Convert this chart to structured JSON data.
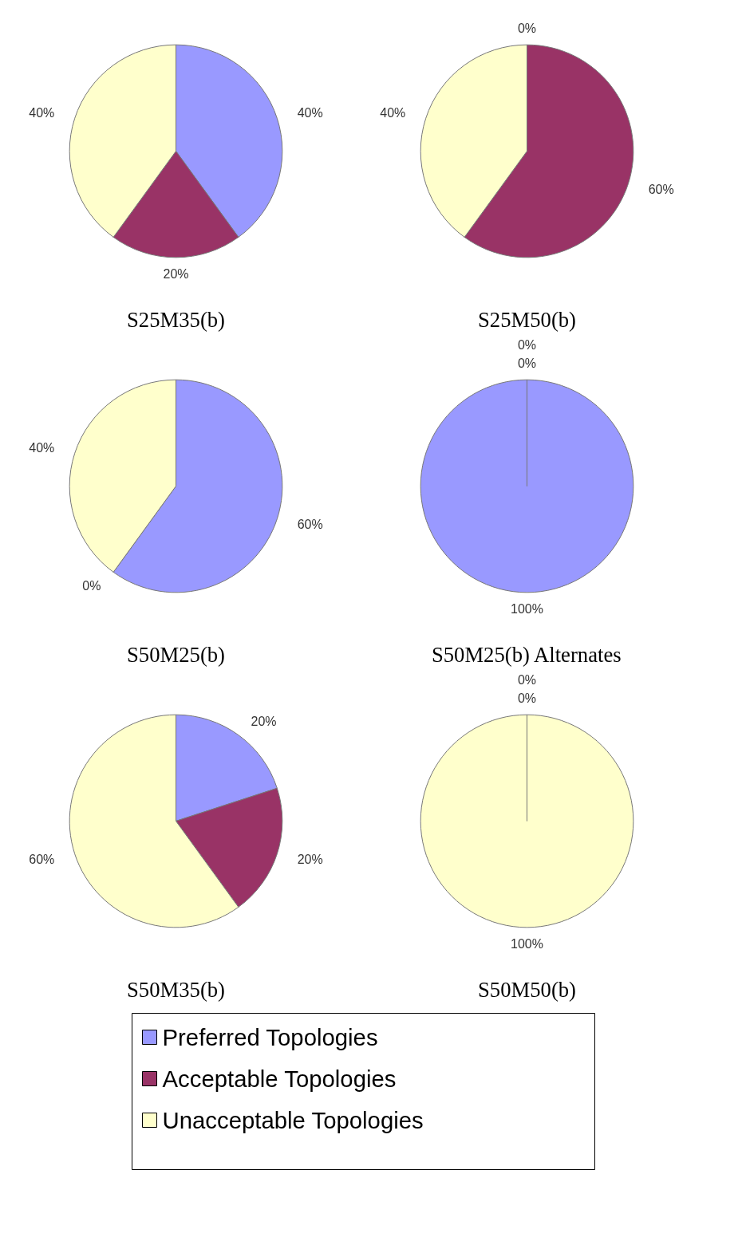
{
  "chart_data": [
    {
      "type": "pie",
      "title": "S25M35(b)",
      "categories": [
        "Preferred Topologies",
        "Acceptable Topologies",
        "Unacceptable Topologies"
      ],
      "values": [
        40,
        20,
        40
      ],
      "value_labels": [
        "40%",
        "20%",
        "40%"
      ],
      "colors": [
        "#9999ff",
        "#993366",
        "#ffffcc"
      ],
      "legend": "bottom"
    },
    {
      "type": "pie",
      "title": "S25M50(b)",
      "categories": [
        null,
        null,
        null
      ],
      "values": [
        0,
        60,
        40
      ],
      "value_labels": [
        "0%",
        "60%",
        "40%"
      ],
      "colors": [
        "#9999ff",
        "#993366",
        "#ffffcc"
      ]
    },
    {
      "type": "pie",
      "title": "S50M25(b)",
      "categories": [
        null,
        null,
        null
      ],
      "values": [
        60,
        0,
        40
      ],
      "value_labels": [
        "60%",
        "0%",
        "40%"
      ],
      "colors": [
        "#9999ff",
        "#993366",
        "#ffffcc"
      ]
    },
    {
      "type": "pie",
      "title": "S50M25(b) Alternates",
      "categories": [
        null,
        null,
        null
      ],
      "values": [
        100,
        0,
        0
      ],
      "value_labels": [
        "100%",
        "0%",
        "0%"
      ],
      "colors": [
        "#9999ff",
        "#993366",
        "#ffffcc"
      ]
    },
    {
      "type": "pie",
      "title": "S50M35(b)",
      "categories": [
        null,
        null,
        null
      ],
      "values": [
        20,
        20,
        60
      ],
      "value_labels": [
        "20%",
        "20%",
        "60%"
      ],
      "colors": [
        "#9999ff",
        "#993366",
        "#ffffcc"
      ]
    },
    {
      "type": "pie",
      "title": "S50M50(b)",
      "categories": [
        null,
        null,
        null
      ],
      "values": [
        0,
        0,
        100
      ],
      "value_labels": [
        "0%",
        "0%",
        "100%"
      ],
      "colors": [
        "#9999ff",
        "#993366",
        "#ffffcc"
      ]
    }
  ]
}
